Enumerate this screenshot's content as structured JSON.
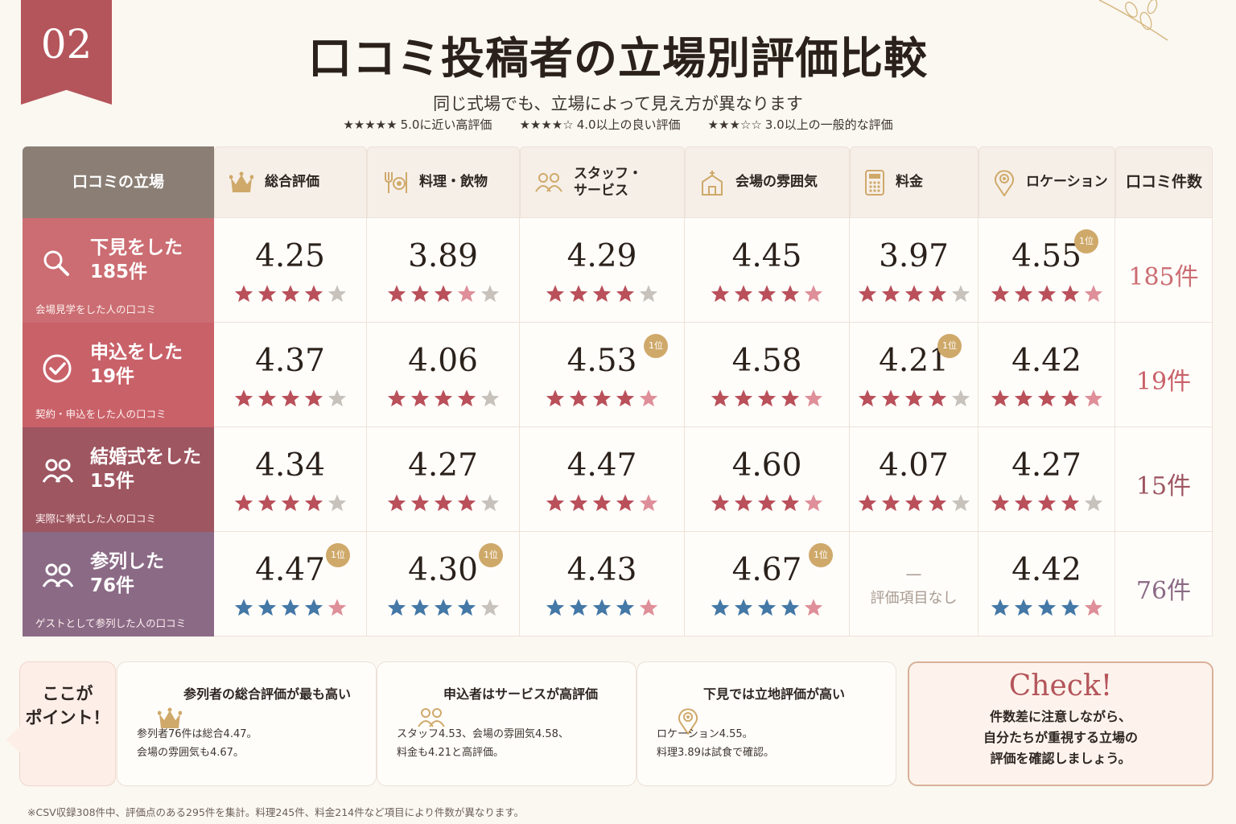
{
  "section_number": "02",
  "title": "口コミ投稿者の立場別評価比較",
  "subtitle": "同じ式場でも、立場によって見え方が異なります",
  "legend": [
    {
      "stars": "★★★★★",
      "text": "5.0に近い高評価"
    },
    {
      "stars": "★★★★☆",
      "text": "4.0以上の良い評価"
    },
    {
      "stars": "★★★☆☆",
      "text": "3.0以上の一般的な評価"
    }
  ],
  "table": {
    "role_header": "口コミの立場",
    "count_header": "口コミ件数",
    "columns": [
      {
        "label": "総合評価",
        "icon": "crown-icon"
      },
      {
        "label": "料理・飲物",
        "icon": "dining-icon"
      },
      {
        "label": "スタッフ・\nサービス",
        "icon": "staff-icon"
      },
      {
        "label": "会場の雰囲気",
        "icon": "venue-icon"
      },
      {
        "label": "料金",
        "icon": "calculator-icon"
      },
      {
        "label": "ロケーション",
        "icon": "location-pin-icon"
      }
    ],
    "rows": [
      {
        "name": "下見をした",
        "count": "185件",
        "sub": "会場見学をした人の口コミ",
        "icon": "search-icon",
        "color": "#cb6d72",
        "count_color": "#cb6d72",
        "star_color": "#b9505a",
        "values": [
          "4.25",
          "3.89",
          "4.29",
          "4.45",
          "3.97",
          "4.55"
        ],
        "ratings": [
          4.25,
          3.89,
          4.29,
          4.45,
          3.97,
          4.55
        ],
        "top": [
          false,
          false,
          false,
          false,
          false,
          true
        ]
      },
      {
        "name": "申込をした",
        "count": "19件",
        "sub": "契約・申込をした人の口コミ",
        "icon": "check-circle-icon",
        "color": "#c96169",
        "count_color": "#c96169",
        "star_color": "#b9505a",
        "values": [
          "4.37",
          "4.06",
          "4.53",
          "4.58",
          "4.21",
          "4.42"
        ],
        "ratings": [
          4.37,
          4.06,
          4.53,
          4.58,
          4.21,
          4.42
        ],
        "top": [
          false,
          false,
          true,
          false,
          true,
          false
        ]
      },
      {
        "name": "結婚式をした",
        "count": "15件",
        "sub": "実際に挙式した人の口コミ",
        "icon": "couple-icon",
        "color": "#9e5661",
        "count_color": "#9e5661",
        "star_color": "#b9505a",
        "values": [
          "4.34",
          "4.27",
          "4.47",
          "4.60",
          "4.07",
          "4.27"
        ],
        "ratings": [
          4.34,
          4.27,
          4.47,
          4.6,
          4.07,
          4.27
        ],
        "top": [
          false,
          false,
          false,
          false,
          false,
          false
        ]
      },
      {
        "name": "参列した",
        "count": "76件",
        "sub": "ゲストとして参列した人の口コミ",
        "icon": "guests-icon",
        "color": "#8b6a86",
        "count_color": "#8b6a86",
        "star_color": "#4478a6",
        "values": [
          "4.47",
          "4.30",
          "4.43",
          "4.67",
          null,
          "4.42"
        ],
        "ratings": [
          4.47,
          4.3,
          4.43,
          4.67,
          null,
          4.42
        ],
        "top": [
          true,
          true,
          false,
          true,
          false,
          false
        ]
      }
    ],
    "top_badge": "1位",
    "na_dash": "—",
    "na_text": "評価項目なし"
  },
  "points": {
    "tag": "ここが\nポイント！",
    "cards": [
      {
        "icon": "crown-icon",
        "title": "参列者の総合評価が最も高い",
        "body": "参列者76件は総合4.47。\n会場の雰囲気も4.67。"
      },
      {
        "icon": "staff-icon",
        "title": "申込者はサービスが高評価",
        "body": "スタッフ4.53、会場の雰囲気4.58、\n料金も4.21と高評価。"
      },
      {
        "icon": "location-pin-icon",
        "title": "下見では立地評価が高い",
        "body": "ロケーション4.55。\n料理3.89は試食で確認。"
      }
    ],
    "check_title": "Check!",
    "check_body": "件数差に注意しながら、\n自分たちが重視する立場の\n評価を確認しましょう。"
  },
  "footnote": "※CSV収録308件中、評価点のある295件を集計。料理245件、料金214件など項目により件数が異なります。",
  "colors": {
    "gold": "#cfa96a",
    "accent": "#b4555b",
    "empty_star": "#c8c2bc",
    "partial_star": "#df8f99"
  }
}
